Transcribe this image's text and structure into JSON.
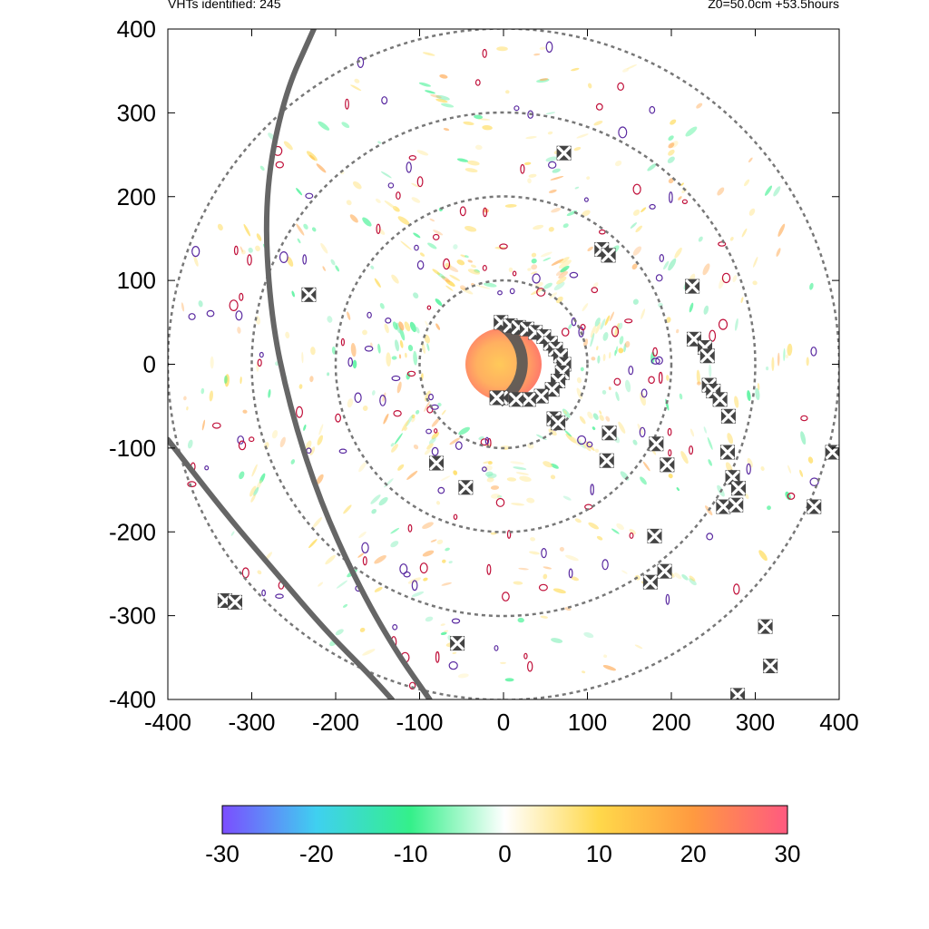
{
  "header": {
    "left_text": "VHTs identified: 245",
    "right_text": "Z0=50.0cm  +53.5hours"
  },
  "chart_data": {
    "type": "scatter",
    "title": "",
    "xlabel": "",
    "ylabel": "",
    "xlim": [
      -400,
      400
    ],
    "ylim": [
      -400,
      400
    ],
    "x_ticks": [
      -400,
      -300,
      -200,
      -100,
      0,
      100,
      200,
      300,
      400
    ],
    "y_ticks": [
      -400,
      -300,
      -200,
      -100,
      0,
      100,
      200,
      300,
      400
    ],
    "grid": false,
    "range_rings": [
      100,
      200,
      300,
      400
    ],
    "colorbar": {
      "min": -30,
      "max": 30,
      "ticks": [
        -30,
        -20,
        -10,
        0,
        10,
        20,
        30
      ],
      "colors": [
        "#7b4dff",
        "#3fd0f0",
        "#34f08a",
        "#ffffff",
        "#ffd84a",
        "#ff9a40",
        "#ff5a80"
      ]
    },
    "vht_count": 245,
    "vht_markers": [
      [
        -3,
        50
      ],
      [
        8,
        46
      ],
      [
        18,
        44
      ],
      [
        28,
        42
      ],
      [
        38,
        38
      ],
      [
        48,
        33
      ],
      [
        56,
        25
      ],
      [
        62,
        18
      ],
      [
        68,
        10
      ],
      [
        72,
        0
      ],
      [
        70,
        -10
      ],
      [
        65,
        -20
      ],
      [
        58,
        -30
      ],
      [
        45,
        -38
      ],
      [
        30,
        -42
      ],
      [
        15,
        -42
      ],
      [
        -3,
        -40
      ],
      [
        -8,
        -40
      ],
      [
        60,
        -65
      ],
      [
        65,
        -70
      ],
      [
        72,
        252
      ],
      [
        117,
        137
      ],
      [
        125,
        130
      ],
      [
        225,
        93
      ],
      [
        227,
        30
      ],
      [
        240,
        20
      ],
      [
        243,
        10
      ],
      [
        245,
        -25
      ],
      [
        250,
        -32
      ],
      [
        258,
        -42
      ],
      [
        268,
        -62
      ],
      [
        267,
        -105
      ],
      [
        273,
        -135
      ],
      [
        280,
        -148
      ],
      [
        262,
        -170
      ],
      [
        277,
        -168
      ],
      [
        195,
        -120
      ],
      [
        182,
        -95
      ],
      [
        126,
        -82
      ],
      [
        123,
        -115
      ],
      [
        180,
        -205
      ],
      [
        175,
        -260
      ],
      [
        192,
        -247
      ],
      [
        370,
        -170
      ],
      [
        392,
        -105
      ],
      [
        312,
        -313
      ],
      [
        318,
        -360
      ],
      [
        279,
        -395
      ],
      [
        -232,
        83
      ],
      [
        -80,
        -118
      ],
      [
        -45,
        -147
      ],
      [
        -55,
        -333
      ],
      [
        -332,
        -282
      ],
      [
        -320,
        -284
      ]
    ],
    "curved_paths": [
      [
        [
          -226,
          400
        ],
        [
          -262,
          320
        ],
        [
          -285,
          200
        ],
        [
          -278,
          60
        ],
        [
          -255,
          -50
        ],
        [
          -220,
          -160
        ],
        [
          -175,
          -260
        ],
        [
          -130,
          -340
        ],
        [
          -88,
          -400
        ]
      ],
      [
        [
          -400,
          -90
        ],
        [
          -330,
          -180
        ],
        [
          -270,
          -250
        ],
        [
          -210,
          -320
        ],
        [
          -160,
          -370
        ],
        [
          -133,
          -400
        ]
      ]
    ]
  }
}
